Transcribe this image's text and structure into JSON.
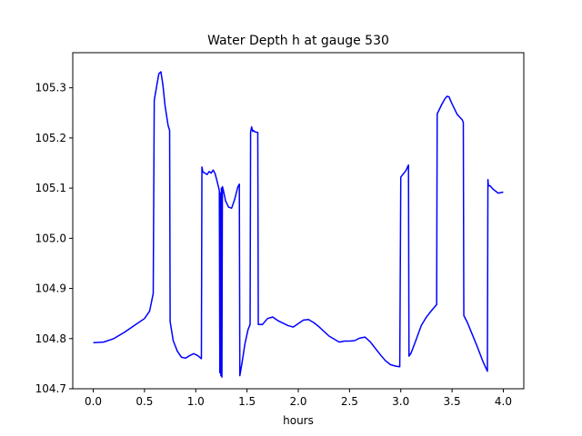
{
  "chart_data": {
    "type": "line",
    "title": "Water Depth h at gauge 530",
    "xlabel": "hours",
    "ylabel": "",
    "xlim": [
      -0.2,
      4.2
    ],
    "ylim": [
      104.7,
      105.37
    ],
    "xticks": [
      0.0,
      0.5,
      1.0,
      1.5,
      2.0,
      2.5,
      3.0,
      3.5,
      4.0
    ],
    "xtick_labels": [
      "0.0",
      "0.5",
      "1.0",
      "1.5",
      "2.0",
      "2.5",
      "3.0",
      "3.5",
      "4.0"
    ],
    "yticks": [
      104.7,
      104.8,
      104.9,
      105.0,
      105.1,
      105.2,
      105.3
    ],
    "ytick_labels": [
      "104.7",
      "104.8",
      "104.9",
      "105.0",
      "105.1",
      "105.2",
      "105.3"
    ],
    "grid": false,
    "series": [
      {
        "color": "#0000ff",
        "x": [
          0.0,
          0.1,
          0.2,
          0.3,
          0.4,
          0.5,
          0.55,
          0.585,
          0.595,
          0.62,
          0.64,
          0.66,
          0.68,
          0.7,
          0.73,
          0.745,
          0.75,
          0.78,
          0.82,
          0.86,
          0.9,
          0.94,
          0.98,
          1.02,
          1.055,
          1.06,
          1.07,
          1.09,
          1.11,
          1.13,
          1.15,
          1.17,
          1.19,
          1.21,
          1.23,
          1.235,
          1.24,
          1.245,
          1.25,
          1.255,
          1.26,
          1.27,
          1.29,
          1.32,
          1.35,
          1.38,
          1.41,
          1.425,
          1.43,
          1.45,
          1.48,
          1.51,
          1.53,
          1.535,
          1.545,
          1.555,
          1.56,
          1.58,
          1.605,
          1.61,
          1.65,
          1.7,
          1.75,
          1.8,
          1.9,
          1.95,
          2.0,
          2.05,
          2.1,
          2.15,
          2.2,
          2.3,
          2.4,
          2.45,
          2.5,
          2.55,
          2.6,
          2.65,
          2.7,
          2.8,
          2.85,
          2.9,
          2.95,
          2.99,
          3.0,
          3.05,
          3.075,
          3.08,
          3.1,
          3.15,
          3.2,
          3.25,
          3.3,
          3.35,
          3.355,
          3.4,
          3.43,
          3.45,
          3.47,
          3.5,
          3.55,
          3.6,
          3.61,
          3.615,
          3.65,
          3.7,
          3.75,
          3.8,
          3.845,
          3.85,
          3.855,
          3.87,
          3.9,
          3.95,
          4.0
        ],
        "y": [
          104.792,
          104.793,
          104.8,
          104.812,
          104.826,
          104.84,
          104.855,
          104.89,
          105.275,
          105.305,
          105.328,
          105.332,
          105.305,
          105.265,
          105.225,
          105.215,
          104.834,
          104.796,
          104.775,
          104.763,
          104.761,
          104.766,
          104.77,
          104.766,
          104.76,
          105.142,
          105.132,
          105.13,
          105.127,
          105.133,
          105.13,
          105.136,
          105.128,
          105.112,
          105.095,
          104.732,
          105.09,
          104.726,
          105.1,
          104.723,
          105.103,
          105.095,
          105.075,
          105.062,
          105.06,
          105.078,
          105.102,
          105.108,
          104.726,
          104.75,
          104.79,
          104.818,
          104.828,
          105.212,
          105.222,
          105.213,
          105.215,
          105.212,
          105.211,
          104.828,
          104.828,
          104.84,
          104.843,
          104.836,
          104.826,
          104.823,
          104.83,
          104.837,
          104.838,
          104.832,
          104.824,
          104.805,
          104.793,
          104.795,
          104.795,
          104.796,
          104.801,
          104.803,
          104.794,
          104.768,
          104.756,
          104.748,
          104.745,
          104.744,
          105.122,
          105.135,
          105.146,
          104.765,
          104.771,
          104.798,
          104.826,
          104.843,
          104.856,
          104.868,
          105.248,
          105.267,
          105.278,
          105.283,
          105.282,
          105.268,
          105.247,
          105.236,
          105.231,
          104.846,
          104.832,
          104.807,
          104.782,
          104.755,
          104.735,
          105.117,
          105.104,
          105.105,
          105.098,
          105.09,
          105.092
        ]
      }
    ]
  }
}
